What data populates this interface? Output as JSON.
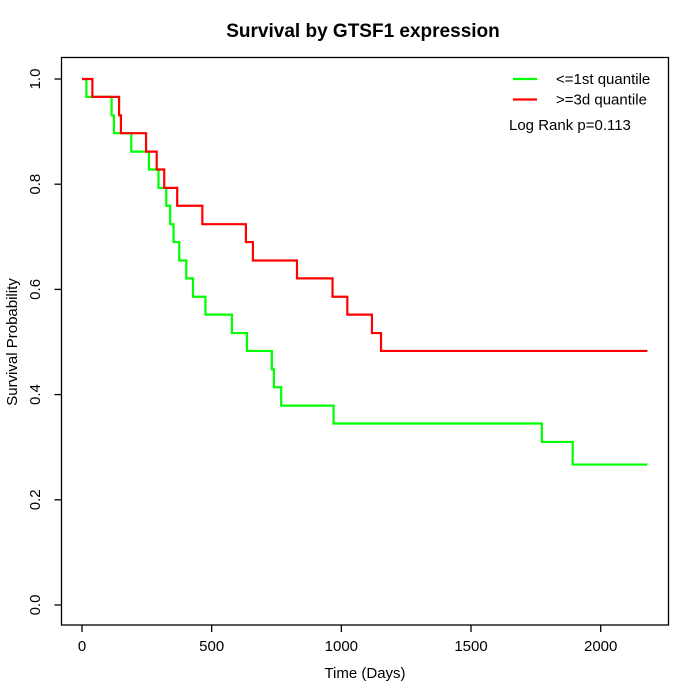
{
  "title": "Survival by GTSF1 expression",
  "axes": {
    "x": {
      "label": "Time (Days)",
      "ticks": [
        {
          "v": 0,
          "label": "0"
        },
        {
          "v": 500,
          "label": "500"
        },
        {
          "v": 1000,
          "label": "1000"
        },
        {
          "v": 1500,
          "label": "1500"
        },
        {
          "v": 2000,
          "label": "2000"
        }
      ]
    },
    "y": {
      "label": "Survival Probability",
      "ticks": [
        {
          "v": 0.0,
          "label": "0.0"
        },
        {
          "v": 0.2,
          "label": "0.2"
        },
        {
          "v": 0.4,
          "label": "0.4"
        },
        {
          "v": 0.6,
          "label": "0.6"
        },
        {
          "v": 0.8,
          "label": "0.8"
        },
        {
          "v": 1.0,
          "label": "1.0"
        }
      ]
    }
  },
  "legend": {
    "items": [
      {
        "label": "<=1st quantile",
        "color": "#00ff00"
      },
      {
        "label": ">=3d quantile",
        "color": "#ff0000"
      }
    ],
    "note": "Log Rank p=0.113"
  },
  "chart_data": {
    "type": "line",
    "subtype": "kaplan-meier-step",
    "title": "Survival by GTSF1 expression",
    "xlabel": "Time (Days)",
    "ylabel": "Survival Probability",
    "xlim": [
      0,
      2260
    ],
    "ylim": [
      0,
      1
    ],
    "grid": false,
    "legend_position": "topright",
    "annotation": "Log Rank p=0.113",
    "series": [
      {
        "name": "<=1st quantile",
        "color": "#00ff00",
        "end": 2180,
        "points": [
          [
            0,
            1.0
          ],
          [
            17,
            0.966
          ],
          [
            114,
            0.931
          ],
          [
            123,
            0.897
          ],
          [
            190,
            0.862
          ],
          [
            258,
            0.828
          ],
          [
            295,
            0.793
          ],
          [
            325,
            0.759
          ],
          [
            340,
            0.724
          ],
          [
            353,
            0.69
          ],
          [
            375,
            0.655
          ],
          [
            402,
            0.621
          ],
          [
            428,
            0.586
          ],
          [
            476,
            0.552
          ],
          [
            578,
            0.517
          ],
          [
            636,
            0.483
          ],
          [
            732,
            0.448
          ],
          [
            740,
            0.414
          ],
          [
            768,
            0.379
          ],
          [
            970,
            0.345
          ],
          [
            1773,
            0.31
          ],
          [
            1892,
            0.267
          ]
        ]
      },
      {
        "name": ">=3d quantile",
        "color": "#ff0000",
        "end": 2180,
        "points": [
          [
            0,
            1.0
          ],
          [
            40,
            0.966
          ],
          [
            143,
            0.931
          ],
          [
            150,
            0.897
          ],
          [
            247,
            0.862
          ],
          [
            288,
            0.828
          ],
          [
            317,
            0.793
          ],
          [
            367,
            0.759
          ],
          [
            464,
            0.724
          ],
          [
            632,
            0.69
          ],
          [
            659,
            0.655
          ],
          [
            829,
            0.621
          ],
          [
            966,
            0.586
          ],
          [
            1023,
            0.552
          ],
          [
            1118,
            0.517
          ],
          [
            1153,
            0.483
          ]
        ]
      }
    ]
  }
}
